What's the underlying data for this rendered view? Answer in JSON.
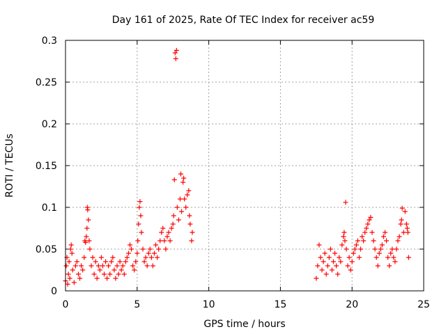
{
  "chart_data": {
    "type": "scatter",
    "title": "Day 161 of 2025, Rate Of TEC Index for receiver ac59",
    "xlabel": "GPS time / hours",
    "ylabel": "ROTI / TECUs",
    "xlim": [
      0,
      25
    ],
    "ylim": [
      0,
      0.3
    ],
    "xticks": [
      "0",
      "5",
      "10",
      "15",
      "20",
      "25"
    ],
    "yticks": [
      "0",
      "0.05",
      "0.1",
      "0.15",
      "0.2",
      "0.25",
      "0.3"
    ],
    "grid": true,
    "marker": "+",
    "color": "#ff0000",
    "series": [
      {
        "points": [
          [
            0.0,
            0.012
          ],
          [
            0.05,
            0.03
          ],
          [
            0.1,
            0.04
          ],
          [
            0.15,
            0.008
          ],
          [
            0.2,
            0.02
          ],
          [
            0.25,
            0.035
          ],
          [
            0.3,
            0.015
          ],
          [
            0.35,
            0.05
          ],
          [
            0.4,
            0.055
          ],
          [
            0.45,
            0.045
          ],
          [
            0.5,
            0.025
          ],
          [
            0.6,
            0.01
          ],
          [
            0.7,
            0.03
          ],
          [
            0.8,
            0.035
          ],
          [
            0.9,
            0.02
          ],
          [
            1.0,
            0.015
          ],
          [
            1.1,
            0.03
          ],
          [
            1.2,
            0.025
          ],
          [
            1.3,
            0.04
          ],
          [
            1.35,
            0.06
          ],
          [
            1.4,
            0.058
          ],
          [
            1.45,
            0.065
          ],
          [
            1.5,
            0.075
          ],
          [
            1.52,
            0.1
          ],
          [
            1.55,
            0.097
          ],
          [
            1.6,
            0.085
          ],
          [
            1.65,
            0.06
          ],
          [
            1.7,
            0.05
          ],
          [
            1.8,
            0.03
          ],
          [
            1.9,
            0.04
          ],
          [
            2.0,
            0.02
          ],
          [
            2.1,
            0.035
          ],
          [
            2.2,
            0.015
          ],
          [
            2.3,
            0.03
          ],
          [
            2.4,
            0.025
          ],
          [
            2.5,
            0.04
          ],
          [
            2.6,
            0.03
          ],
          [
            2.7,
            0.02
          ],
          [
            2.8,
            0.035
          ],
          [
            2.9,
            0.015
          ],
          [
            3.0,
            0.03
          ],
          [
            3.1,
            0.02
          ],
          [
            3.2,
            0.035
          ],
          [
            3.3,
            0.04
          ],
          [
            3.4,
            0.025
          ],
          [
            3.5,
            0.015
          ],
          [
            3.6,
            0.03
          ],
          [
            3.7,
            0.02
          ],
          [
            3.8,
            0.035
          ],
          [
            3.9,
            0.025
          ],
          [
            4.0,
            0.03
          ],
          [
            4.1,
            0.02
          ],
          [
            4.2,
            0.035
          ],
          [
            4.3,
            0.04
          ],
          [
            4.4,
            0.045
          ],
          [
            4.5,
            0.055
          ],
          [
            4.6,
            0.05
          ],
          [
            4.7,
            0.03
          ],
          [
            4.8,
            0.025
          ],
          [
            4.9,
            0.035
          ],
          [
            5.0,
            0.045
          ],
          [
            5.05,
            0.06
          ],
          [
            5.1,
            0.08
          ],
          [
            5.15,
            0.1
          ],
          [
            5.2,
            0.107
          ],
          [
            5.25,
            0.09
          ],
          [
            5.3,
            0.07
          ],
          [
            5.4,
            0.05
          ],
          [
            5.5,
            0.035
          ],
          [
            5.6,
            0.04
          ],
          [
            5.7,
            0.03
          ],
          [
            5.8,
            0.045
          ],
          [
            5.9,
            0.05
          ],
          [
            6.0,
            0.04
          ],
          [
            6.1,
            0.03
          ],
          [
            6.2,
            0.045
          ],
          [
            6.3,
            0.055
          ],
          [
            6.4,
            0.04
          ],
          [
            6.5,
            0.05
          ],
          [
            6.6,
            0.06
          ],
          [
            6.7,
            0.07
          ],
          [
            6.8,
            0.075
          ],
          [
            6.9,
            0.06
          ],
          [
            7.0,
            0.05
          ],
          [
            7.1,
            0.065
          ],
          [
            7.2,
            0.07
          ],
          [
            7.3,
            0.06
          ],
          [
            7.4,
            0.075
          ],
          [
            7.5,
            0.08
          ],
          [
            7.55,
            0.09
          ],
          [
            7.6,
            0.133
          ],
          [
            7.65,
            0.285
          ],
          [
            7.7,
            0.278
          ],
          [
            7.75,
            0.288
          ],
          [
            7.8,
            0.1
          ],
          [
            7.9,
            0.085
          ],
          [
            8.0,
            0.11
          ],
          [
            8.05,
            0.14
          ],
          [
            8.1,
            0.095
          ],
          [
            8.2,
            0.13
          ],
          [
            8.25,
            0.135
          ],
          [
            8.3,
            0.11
          ],
          [
            8.4,
            0.1
          ],
          [
            8.5,
            0.115
          ],
          [
            8.6,
            0.12
          ],
          [
            8.65,
            0.09
          ],
          [
            8.7,
            0.08
          ],
          [
            8.8,
            0.06
          ],
          [
            8.85,
            0.07
          ],
          [
            17.5,
            0.015
          ],
          [
            17.6,
            0.03
          ],
          [
            17.7,
            0.055
          ],
          [
            17.8,
            0.04
          ],
          [
            17.9,
            0.025
          ],
          [
            18.0,
            0.035
          ],
          [
            18.1,
            0.045
          ],
          [
            18.2,
            0.02
          ],
          [
            18.3,
            0.03
          ],
          [
            18.4,
            0.04
          ],
          [
            18.5,
            0.05
          ],
          [
            18.6,
            0.025
          ],
          [
            18.7,
            0.035
          ],
          [
            18.8,
            0.045
          ],
          [
            18.9,
            0.03
          ],
          [
            19.0,
            0.02
          ],
          [
            19.1,
            0.04
          ],
          [
            19.2,
            0.035
          ],
          [
            19.3,
            0.055
          ],
          [
            19.4,
            0.065
          ],
          [
            19.45,
            0.07
          ],
          [
            19.5,
            0.06
          ],
          [
            19.55,
            0.106
          ],
          [
            19.6,
            0.05
          ],
          [
            19.7,
            0.03
          ],
          [
            19.8,
            0.04
          ],
          [
            19.9,
            0.025
          ],
          [
            20.0,
            0.035
          ],
          [
            20.1,
            0.045
          ],
          [
            20.2,
            0.05
          ],
          [
            20.3,
            0.055
          ],
          [
            20.4,
            0.06
          ],
          [
            20.5,
            0.04
          ],
          [
            20.6,
            0.05
          ],
          [
            20.7,
            0.065
          ],
          [
            20.8,
            0.06
          ],
          [
            20.9,
            0.07
          ],
          [
            21.0,
            0.075
          ],
          [
            21.1,
            0.08
          ],
          [
            21.2,
            0.085
          ],
          [
            21.3,
            0.088
          ],
          [
            21.4,
            0.07
          ],
          [
            21.5,
            0.06
          ],
          [
            21.6,
            0.05
          ],
          [
            21.7,
            0.04
          ],
          [
            21.8,
            0.03
          ],
          [
            21.9,
            0.045
          ],
          [
            22.0,
            0.05
          ],
          [
            22.1,
            0.055
          ],
          [
            22.2,
            0.065
          ],
          [
            22.3,
            0.07
          ],
          [
            22.4,
            0.06
          ],
          [
            22.5,
            0.04
          ],
          [
            22.6,
            0.03
          ],
          [
            22.7,
            0.045
          ],
          [
            22.8,
            0.05
          ],
          [
            22.9,
            0.04
          ],
          [
            23.0,
            0.035
          ],
          [
            23.1,
            0.05
          ],
          [
            23.2,
            0.06
          ],
          [
            23.3,
            0.065
          ],
          [
            23.4,
            0.08
          ],
          [
            23.45,
            0.085
          ],
          [
            23.5,
            0.099
          ],
          [
            23.6,
            0.07
          ],
          [
            23.7,
            0.095
          ],
          [
            23.8,
            0.08
          ],
          [
            23.85,
            0.075
          ],
          [
            23.9,
            0.07
          ],
          [
            23.95,
            0.04
          ]
        ]
      }
    ]
  }
}
